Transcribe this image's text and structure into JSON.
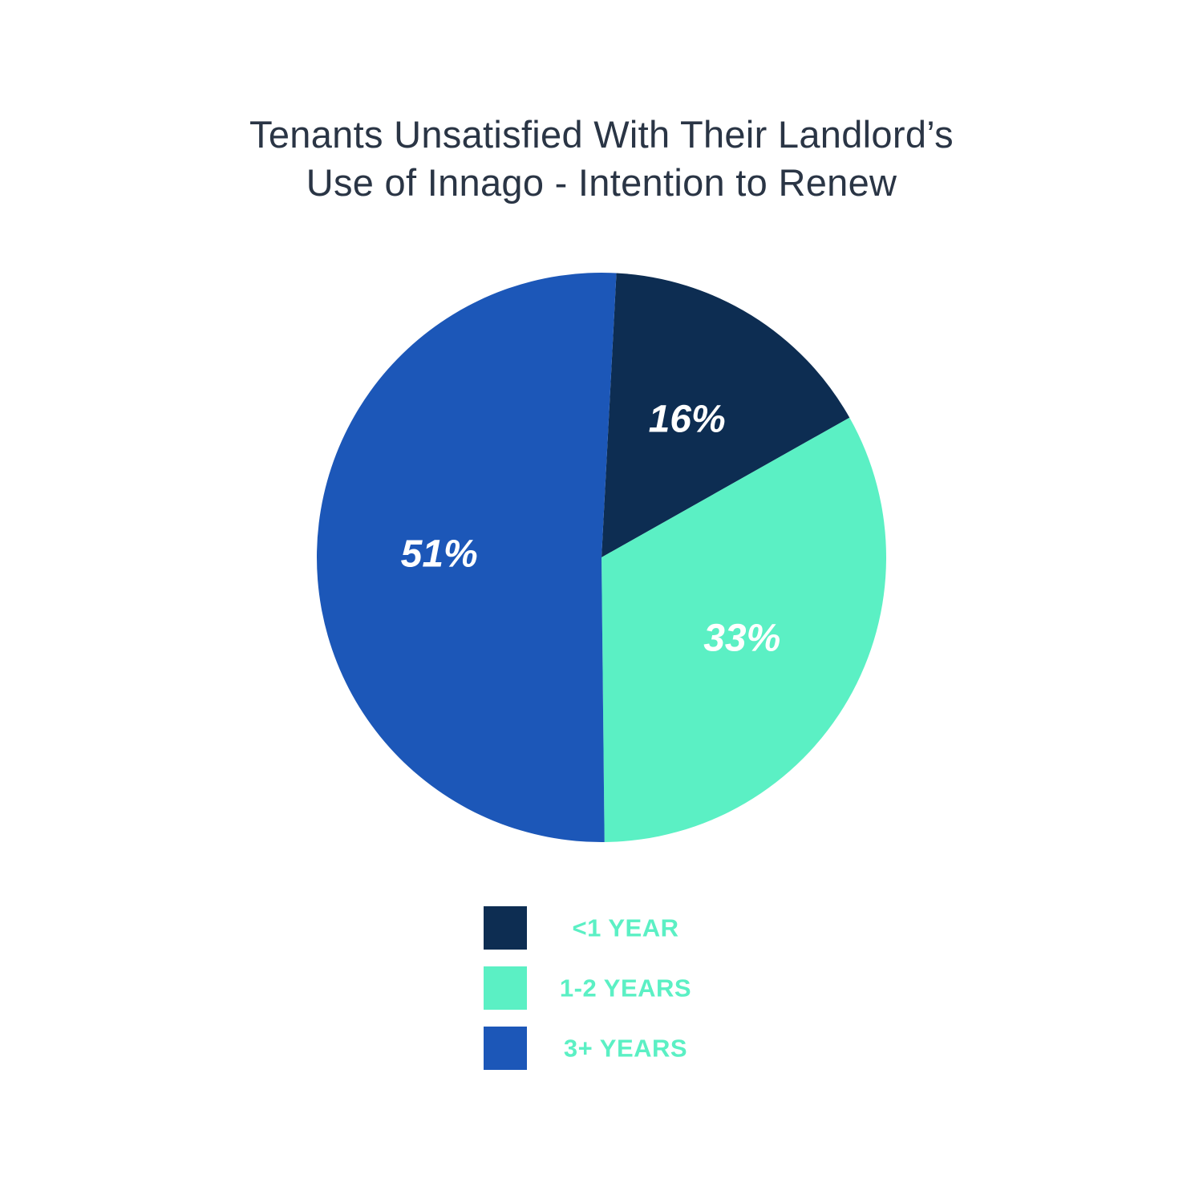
{
  "chart_data": {
    "type": "pie",
    "title_lines": [
      "Tenants Unsatisfied With Their Landlord’s",
      "Use of Innago - Intention to Renew"
    ],
    "slices": [
      {
        "label": "<1 YEAR",
        "value": 16,
        "display": "16%",
        "color": "#0d2d52"
      },
      {
        "label": "1-2 YEARS",
        "value": 33,
        "display": "33%",
        "color": "#5bf0c4"
      },
      {
        "label": "3+ YEARS",
        "value": 51,
        "display": "51%",
        "color": "#1c57b8"
      }
    ],
    "legend_text_color": "#5bf0c4",
    "legend_position": "bottom",
    "start": "clockwise from top"
  }
}
